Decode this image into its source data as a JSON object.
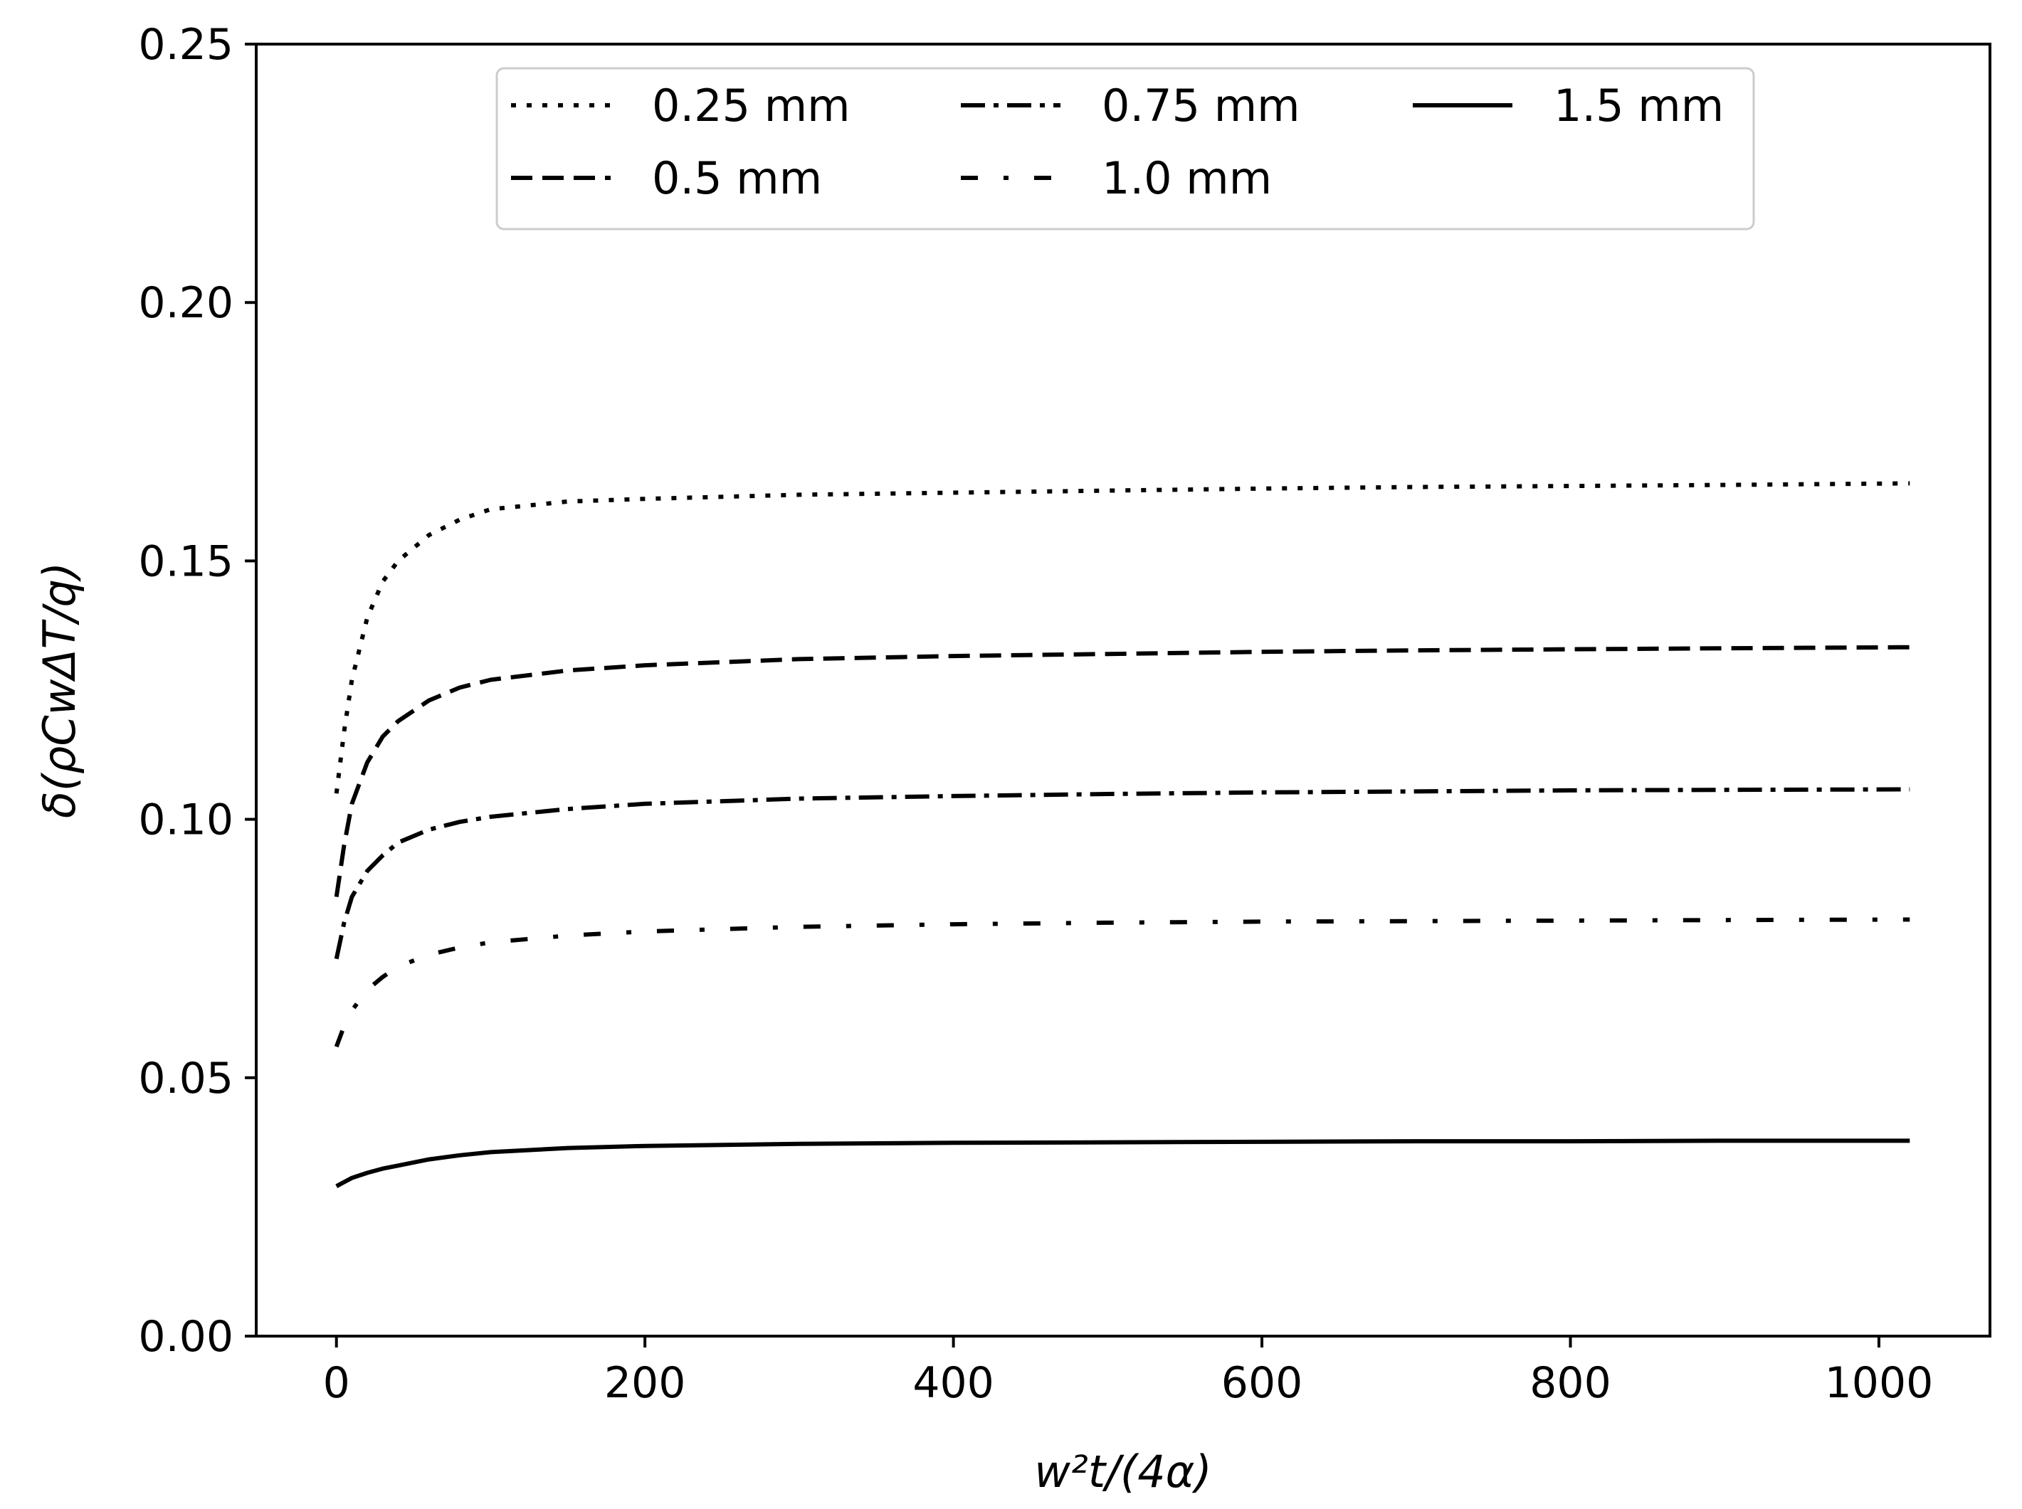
{
  "chart_data": {
    "type": "line",
    "xlabel": "w²t/(4α)",
    "ylabel": "δ(ρCwΔT/q)",
    "xlim": [
      -52,
      1072
    ],
    "ylim": [
      0,
      0.25
    ],
    "xticks": [
      "0",
      "200",
      "400",
      "600",
      "800",
      "1000"
    ],
    "yticks": [
      "0.00",
      "0.05",
      "0.10",
      "0.15",
      "0.20",
      "0.25"
    ],
    "grid": false,
    "legend_position": "upper-center",
    "legend_columns": 3,
    "series": [
      {
        "name": "0.25 mm",
        "style": "dotted",
        "x": [
          0,
          5,
          10,
          20,
          30,
          40,
          60,
          80,
          100,
          150,
          200,
          300,
          400,
          500,
          600,
          700,
          800,
          900,
          1020
        ],
        "y": [
          0.105,
          0.117,
          0.127,
          0.139,
          0.146,
          0.15,
          0.155,
          0.158,
          0.16,
          0.1615,
          0.162,
          0.1628,
          0.1632,
          0.1636,
          0.164,
          0.1643,
          0.1645,
          0.1647,
          0.165
        ]
      },
      {
        "name": "0.5 mm",
        "style": "dashed",
        "x": [
          0,
          5,
          10,
          20,
          30,
          40,
          60,
          80,
          100,
          150,
          200,
          300,
          400,
          500,
          600,
          700,
          800,
          900,
          1020
        ],
        "y": [
          0.085,
          0.095,
          0.103,
          0.111,
          0.116,
          0.119,
          0.123,
          0.1255,
          0.127,
          0.1288,
          0.1298,
          0.131,
          0.1316,
          0.132,
          0.1324,
          0.1327,
          0.1329,
          0.1331,
          0.1333
        ]
      },
      {
        "name": "0.75 mm",
        "style": "dash-dot",
        "x": [
          0,
          5,
          10,
          20,
          30,
          40,
          60,
          80,
          100,
          150,
          200,
          300,
          400,
          500,
          600,
          700,
          800,
          900,
          1020
        ],
        "y": [
          0.073,
          0.08,
          0.085,
          0.09,
          0.093,
          0.0955,
          0.098,
          0.0995,
          0.1005,
          0.102,
          0.103,
          0.104,
          0.1045,
          0.1049,
          0.1052,
          0.1054,
          0.1056,
          0.1057,
          0.1058
        ]
      },
      {
        "name": "1.0 mm",
        "style": "sparse-dash-dot",
        "x": [
          0,
          5,
          10,
          20,
          30,
          40,
          60,
          80,
          100,
          150,
          200,
          300,
          400,
          500,
          600,
          700,
          800,
          900,
          1020
        ],
        "y": [
          0.056,
          0.06,
          0.063,
          0.067,
          0.0695,
          0.0715,
          0.0738,
          0.0752,
          0.0762,
          0.0775,
          0.0783,
          0.0792,
          0.0797,
          0.08,
          0.0802,
          0.0803,
          0.0804,
          0.0805,
          0.0806
        ]
      },
      {
        "name": "1.5 mm",
        "style": "solid",
        "x": [
          0,
          5,
          10,
          20,
          30,
          40,
          60,
          80,
          100,
          150,
          200,
          300,
          400,
          500,
          600,
          700,
          800,
          900,
          1020
        ],
        "y": [
          0.029,
          0.0298,
          0.0306,
          0.0316,
          0.0324,
          0.033,
          0.0342,
          0.035,
          0.0356,
          0.0364,
          0.0368,
          0.0372,
          0.0374,
          0.0375,
          0.0376,
          0.0377,
          0.0377,
          0.0378,
          0.0378
        ]
      }
    ]
  }
}
